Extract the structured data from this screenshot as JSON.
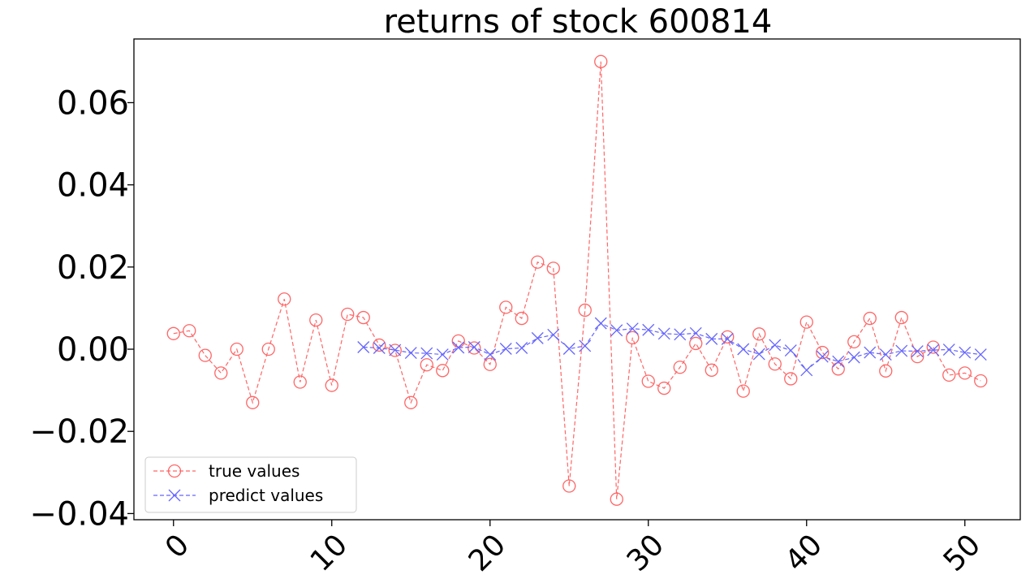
{
  "chart_data": {
    "type": "line",
    "title": "returns of stock 600814",
    "xlabel": "",
    "ylabel": "",
    "xlim": [
      -2.5,
      53.5
    ],
    "ylim": [
      -0.0415,
      0.0755
    ],
    "xticks": [
      0,
      10,
      20,
      30,
      40,
      50
    ],
    "xtick_labels": [
      "0",
      "10",
      "20",
      "30",
      "40",
      "50"
    ],
    "yticks": [
      -0.04,
      -0.02,
      0.0,
      0.02,
      0.04,
      0.06
    ],
    "ytick_labels": [
      "−0.04",
      "−0.02",
      "0.00",
      "0.02",
      "0.04",
      "0.06"
    ],
    "grid": false,
    "legend_position": "lower-left",
    "series": [
      {
        "name": "true values",
        "color": "#ff6666",
        "marker": "circle",
        "linestyle": "dashed",
        "x": [
          0,
          1,
          2,
          3,
          4,
          5,
          6,
          7,
          8,
          9,
          10,
          11,
          12,
          13,
          14,
          15,
          16,
          17,
          18,
          19,
          20,
          21,
          22,
          23,
          24,
          25,
          26,
          27,
          28,
          29,
          30,
          31,
          32,
          33,
          34,
          35,
          36,
          37,
          38,
          39,
          40,
          41,
          42,
          43,
          44,
          45,
          46,
          47,
          48,
          49,
          50,
          51
        ],
        "values": [
          0.0038,
          0.0045,
          -0.0015,
          -0.0058,
          0.0,
          -0.013,
          0.0,
          0.0122,
          -0.008,
          0.0071,
          -0.0088,
          0.0085,
          0.0077,
          0.001,
          -0.0003,
          -0.013,
          -0.0038,
          -0.0052,
          0.002,
          0.0003,
          -0.0037,
          0.0102,
          0.0075,
          0.0212,
          0.0197,
          -0.0333,
          0.0095,
          0.07,
          -0.0365,
          0.0028,
          -0.0078,
          -0.0095,
          -0.0044,
          0.0014,
          -0.0051,
          0.003,
          -0.0102,
          0.0037,
          -0.0036,
          -0.0072,
          0.0066,
          -0.0008,
          -0.0048,
          0.0018,
          0.0075,
          -0.0053,
          0.0077,
          -0.0018,
          0.0005,
          -0.0063,
          -0.0058,
          -0.0077
        ]
      },
      {
        "name": "predict values",
        "color": "#6666ff",
        "marker": "x",
        "linestyle": "dashed",
        "x": [
          12,
          13,
          14,
          15,
          16,
          17,
          18,
          19,
          20,
          21,
          22,
          23,
          24,
          25,
          26,
          27,
          28,
          29,
          30,
          31,
          32,
          33,
          34,
          35,
          36,
          37,
          38,
          39,
          40,
          41,
          42,
          43,
          44,
          45,
          46,
          47,
          48,
          49,
          50,
          51
        ],
        "values": [
          0.0005,
          0.0003,
          -0.0002,
          -0.0009,
          -0.001,
          -0.0013,
          0.0004,
          0.0005,
          -0.0013,
          0.0001,
          0.0003,
          0.0027,
          0.0035,
          0.0001,
          0.0008,
          0.0063,
          0.0046,
          0.005,
          0.0047,
          0.0038,
          0.0036,
          0.0039,
          0.0025,
          0.0025,
          0.0,
          -0.0012,
          0.001,
          -0.0003,
          -0.0051,
          -0.0018,
          -0.003,
          -0.002,
          -0.0008,
          -0.0013,
          -0.0004,
          -0.0005,
          -0.0002,
          -0.0001,
          -0.0008,
          -0.0013
        ]
      }
    ]
  }
}
